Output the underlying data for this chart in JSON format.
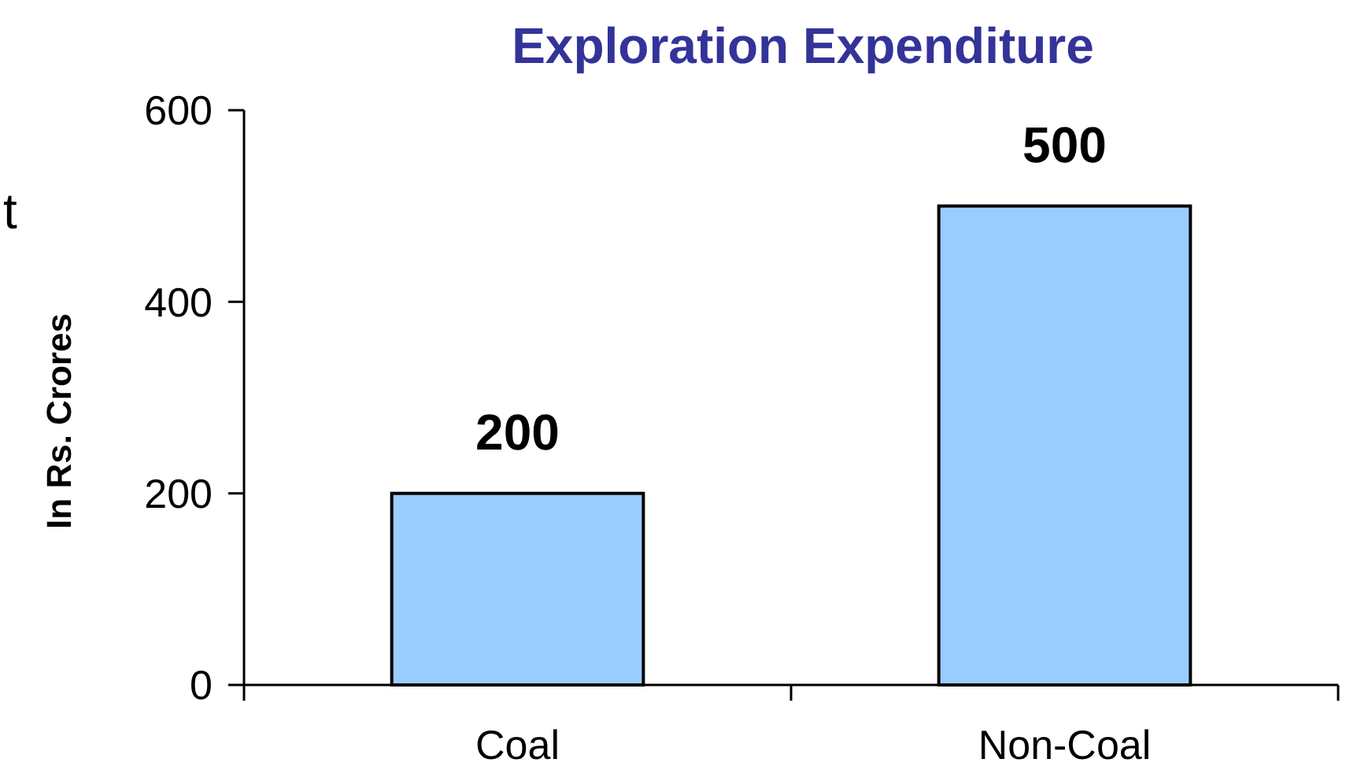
{
  "chart_data": {
    "type": "bar",
    "title": "Exploration Expenditure",
    "ylabel": "In Rs. Crores",
    "categories": [
      "Coal",
      "Non-Coal"
    ],
    "values": [
      200,
      500
    ],
    "color": "#99ccff",
    "ylim": [
      0,
      600
    ],
    "yticks": [
      0,
      200,
      400,
      600
    ],
    "grid": false,
    "data_labels": true,
    "annotations": [
      "t"
    ]
  }
}
